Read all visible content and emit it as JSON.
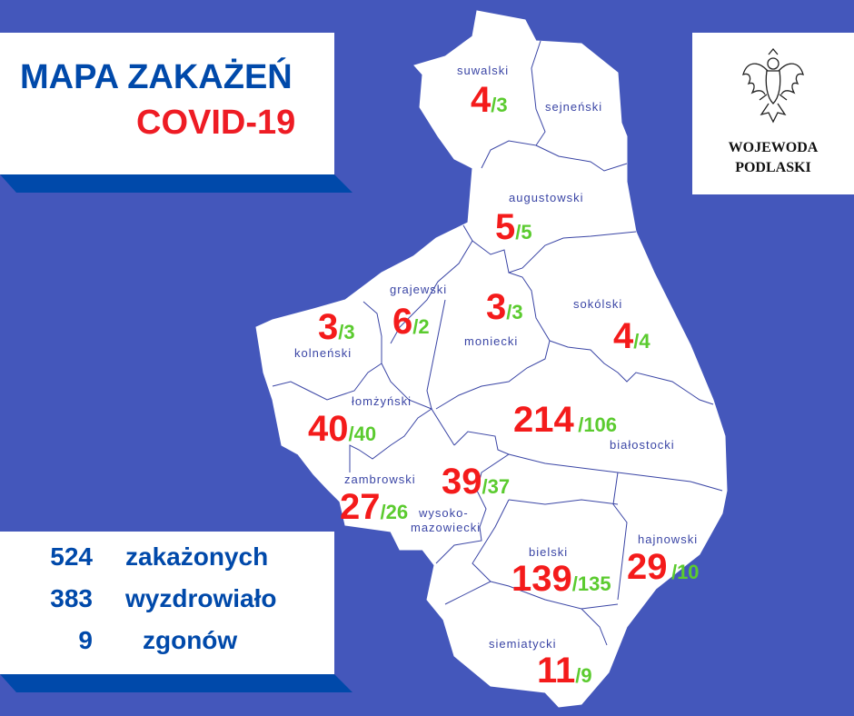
{
  "title": {
    "line1": "MAPA ZAKAŻEŃ",
    "line2": "COVID-19"
  },
  "logo": {
    "icon": "polish-eagle-emblem",
    "line1": "WOJEWODA",
    "line2": "PODLASKI"
  },
  "summary": [
    {
      "value": "524",
      "label": "zakażonych"
    },
    {
      "value": "383",
      "label": "wyzdrowiało"
    },
    {
      "value": "9",
      "label": "zgonów"
    }
  ],
  "colors": {
    "background": "#4457BB",
    "title_blue": "#0049AA",
    "cases_red": "#F41B1B",
    "recovered_green": "#5BCB2F",
    "district_label": "#3A45A5"
  },
  "districts": [
    {
      "name": "suwalski",
      "cases": "4",
      "recovered": "/3"
    },
    {
      "name": "sejneński",
      "cases": "",
      "recovered": ""
    },
    {
      "name": "augustowski",
      "cases": "5",
      "recovered": "/5"
    },
    {
      "name": "grajewski",
      "cases": "6",
      "recovered": "/2"
    },
    {
      "name": "kolneński",
      "cases": "3",
      "recovered": "/3"
    },
    {
      "name": "moniecki",
      "cases": "3",
      "recovered": "/3"
    },
    {
      "name": "sokólski",
      "cases": "4",
      "recovered": "/4"
    },
    {
      "name": "łomżyński",
      "cases": "40",
      "recovered": "/40"
    },
    {
      "name": "białostocki",
      "cases": "214",
      "recovered": "/106"
    },
    {
      "name": "zambrowski",
      "cases": "27",
      "recovered": "/26"
    },
    {
      "name": "wysoko-",
      "name2": "mazowiecki",
      "cases": "39",
      "recovered": "/37"
    },
    {
      "name": "bielski",
      "cases": "139",
      "recovered": "/135"
    },
    {
      "name": "hajnowski",
      "cases": "29",
      "recovered": "/10"
    },
    {
      "name": "siemiatycki",
      "cases": "11",
      "recovered": "/9"
    }
  ]
}
